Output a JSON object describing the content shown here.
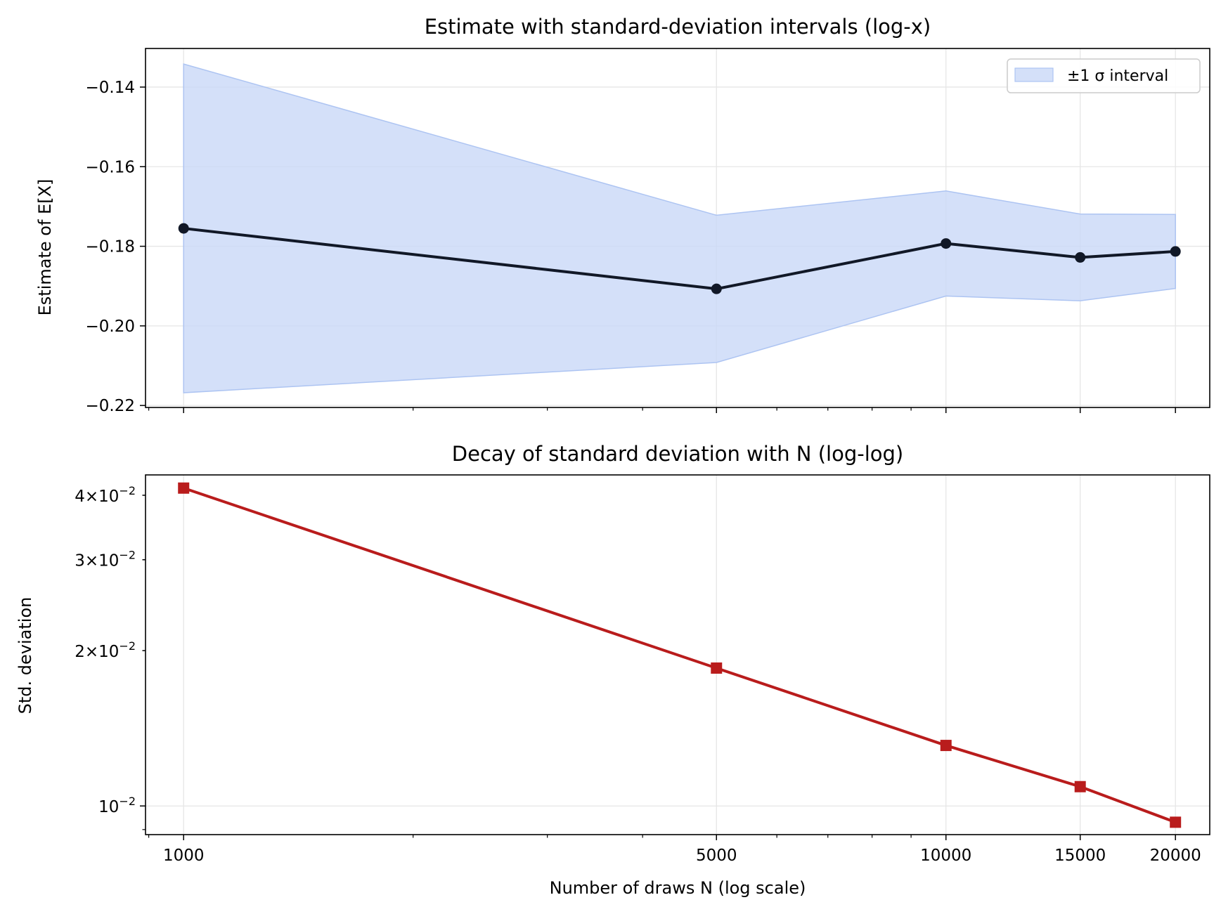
{
  "chart_data": [
    {
      "type": "line",
      "title": "Estimate with standard-deviation intervals (log-x)",
      "xlabel": "",
      "ylabel": "Estimate of E[X]",
      "xscale": "log",
      "x": [
        1000,
        5000,
        10000,
        15000,
        20000
      ],
      "series": [
        {
          "name": "",
          "values": [
            -0.1755,
            -0.1907,
            -0.1793,
            -0.1828,
            -0.1813
          ],
          "color": "#111827",
          "marker": "circle"
        }
      ],
      "band": {
        "name": "±1 σ interval",
        "lower": [
          -0.2168,
          -0.2092,
          -0.1925,
          -0.1937,
          -0.1906
        ],
        "upper": [
          -0.1342,
          -0.1722,
          -0.1661,
          -0.1719,
          -0.172
        ],
        "color": "#c9d8f7"
      },
      "ylim": [
        -0.2205,
        -0.1303
      ],
      "yticks": [
        -0.22,
        -0.2,
        -0.18,
        -0.16,
        -0.14
      ],
      "ytick_labels": [
        "−0.22",
        "−0.20",
        "−0.18",
        "−0.16",
        "−0.14"
      ],
      "legend_position": "top-right",
      "grid": true
    },
    {
      "type": "line",
      "title": "Decay of standard deviation with N (log-log)",
      "xlabel": "Number of draws N (log scale)",
      "ylabel": "Std. deviation",
      "xscale": "log",
      "yscale": "log",
      "x": [
        1000,
        5000,
        10000,
        15000,
        20000
      ],
      "xticks": [
        1000,
        5000,
        10000,
        15000,
        20000
      ],
      "xtick_labels": [
        "1000",
        "5000",
        "10000",
        "15000",
        "20000"
      ],
      "series": [
        {
          "name": "",
          "values": [
            0.0413,
            0.0185,
            0.0131,
            0.0109,
            0.0093
          ],
          "color": "#b91c1c",
          "marker": "square"
        }
      ],
      "yticks": [
        0.01,
        0.02,
        0.03,
        0.04
      ],
      "ytick_labels": [
        {
          "base": "10",
          "exp": "−2"
        },
        {
          "base": "2×10",
          "exp": "−2"
        },
        {
          "base": "3×10",
          "exp": "−2"
        },
        {
          "base": "4×10",
          "exp": "−2"
        }
      ],
      "ylim": [
        0.0088,
        0.0438
      ],
      "grid": true
    }
  ]
}
